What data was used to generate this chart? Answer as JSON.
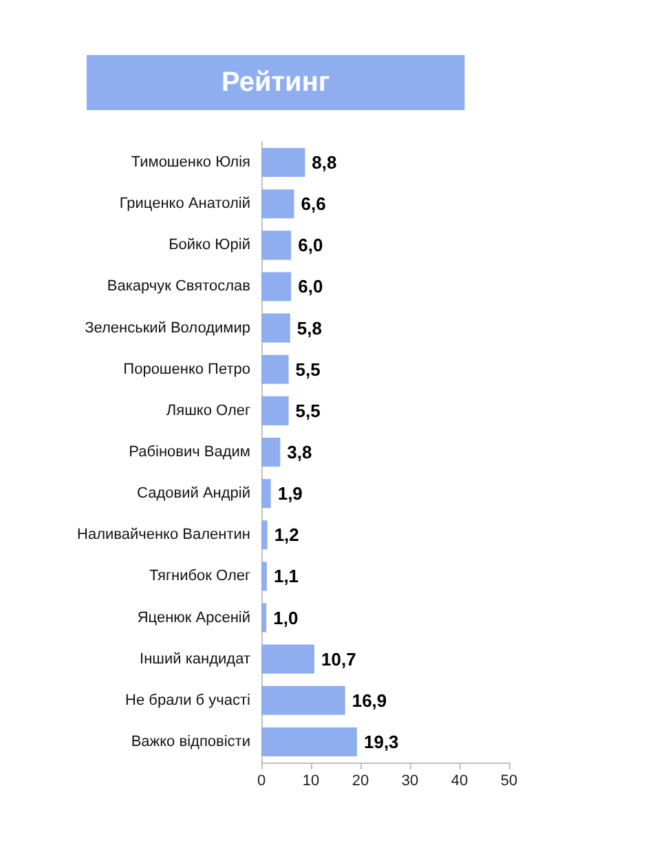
{
  "chart_data": {
    "type": "bar",
    "orientation": "horizontal",
    "title": "Рейтинг",
    "categories": [
      "Тимошенко Юлія",
      "Гриценко Анатолій",
      "Бойко Юрій",
      "Вакарчук Святослав",
      "Зеленський Володимир",
      "Порошенко Петро",
      "Ляшко Олег",
      "Рабінович Вадим",
      "Садовий Андрій",
      "Наливайченко Валентин",
      "Тягнибок Олег",
      "Яценюк Арсеній",
      "Інший кандидат",
      "Не брали б участі",
      "Важко відповісти"
    ],
    "values": [
      8.8,
      6.6,
      6.0,
      6.0,
      5.8,
      5.5,
      5.5,
      3.8,
      1.9,
      1.2,
      1.1,
      1.0,
      10.7,
      16.9,
      19.3
    ],
    "value_labels": [
      "8,8",
      "6,6",
      "6,0",
      "6,0",
      "5,8",
      "5,5",
      "5,5",
      "3,8",
      "1,9",
      "1,2",
      "1,1",
      "1,0",
      "10,7",
      "16,9",
      "19,3"
    ],
    "color": "#8eaef0",
    "xlim": [
      0,
      50
    ],
    "xticks": [
      0,
      10,
      20,
      30,
      40,
      50
    ],
    "grid": false
  }
}
